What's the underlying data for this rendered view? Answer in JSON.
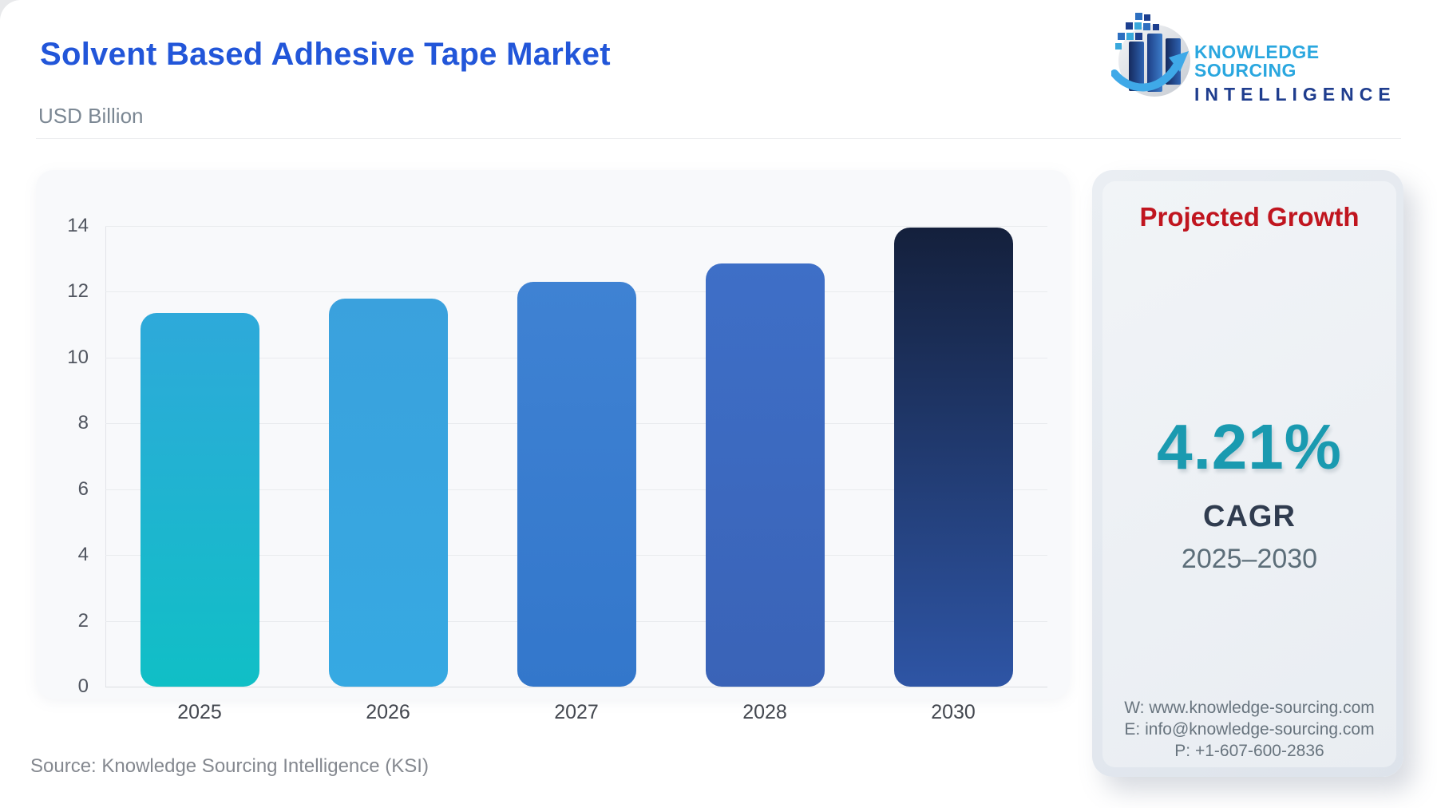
{
  "header": {
    "title": "Solvent Based Adhesive Tape Market",
    "subtitle": "USD Billion"
  },
  "logo": {
    "line1": "KNOWLEDGE SOURCING",
    "line2": "INTELLIGENCE",
    "line1_color": "#2AA7DF",
    "line2_color": "#1F3D8E"
  },
  "chart_data": {
    "type": "bar",
    "title": "Solvent Based Adhesive Tape Market",
    "ylabel": "USD Billion",
    "xlabel": "",
    "categories": [
      "2025",
      "2026",
      "2027",
      "2028",
      "2030"
    ],
    "values": [
      11.35,
      11.8,
      12.3,
      12.85,
      13.95
    ],
    "ylim": [
      0,
      14
    ],
    "yticks": [
      0,
      2,
      4,
      6,
      8,
      10,
      12,
      14
    ],
    "grid": true,
    "legend": false,
    "bar_gradients": [
      [
        "#2EA9DA",
        "#10BFC6"
      ],
      [
        "#3AA1DD",
        "#36A9E2"
      ],
      [
        "#3F82D3",
        "#3377CB"
      ],
      [
        "#3E6FC7",
        "#3A63B7"
      ],
      [
        "#14203C",
        "#2E55A5"
      ]
    ]
  },
  "growth_panel": {
    "title": "Projected Growth",
    "title_color": "#C0151F",
    "value": "4.21%",
    "value_color": "#1A9AB0",
    "label": "CAGR",
    "period": "2025–2030",
    "contact": {
      "website": "W: www.knowledge-sourcing.com",
      "email": "E: info@knowledge-sourcing.com",
      "phone": "P: +1-607-600-2836"
    }
  },
  "footer": {
    "source": "Source: Knowledge Sourcing Intelligence (KSI)"
  },
  "theme": {
    "title_color": "#2256D9",
    "subtitle_color": "#7B8793",
    "card_bg": "#F8F9FB",
    "panel_bg": "#E9EDF2",
    "grid_color": "#E9EBEE"
  }
}
